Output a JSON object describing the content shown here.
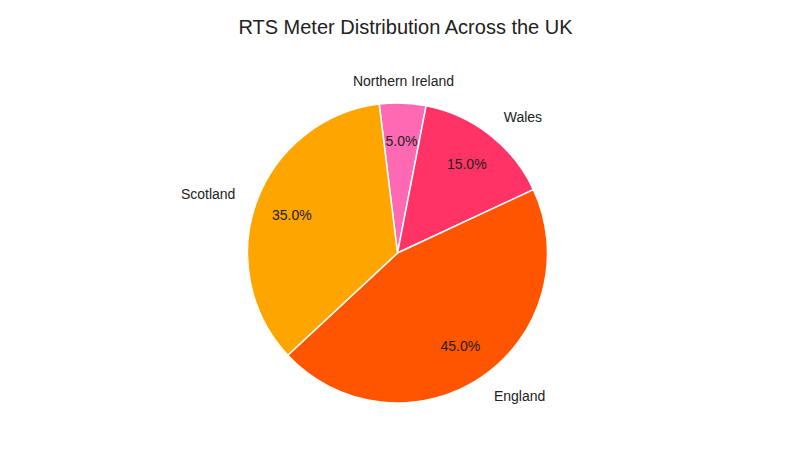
{
  "chart_data": {
    "type": "pie",
    "title": "RTS Meter Distribution Across the UK",
    "categories": [
      "Northern Ireland",
      "Wales",
      "England",
      "Scotland"
    ],
    "values": [
      5.0,
      15.0,
      45.0,
      35.0
    ],
    "value_labels": [
      "5.0%",
      "15.0%",
      "45.0%",
      "35.0%"
    ],
    "colors": [
      "#FF69B4",
      "#FF3366",
      "#FF5500",
      "#FFA500"
    ],
    "data_labels": true
  }
}
